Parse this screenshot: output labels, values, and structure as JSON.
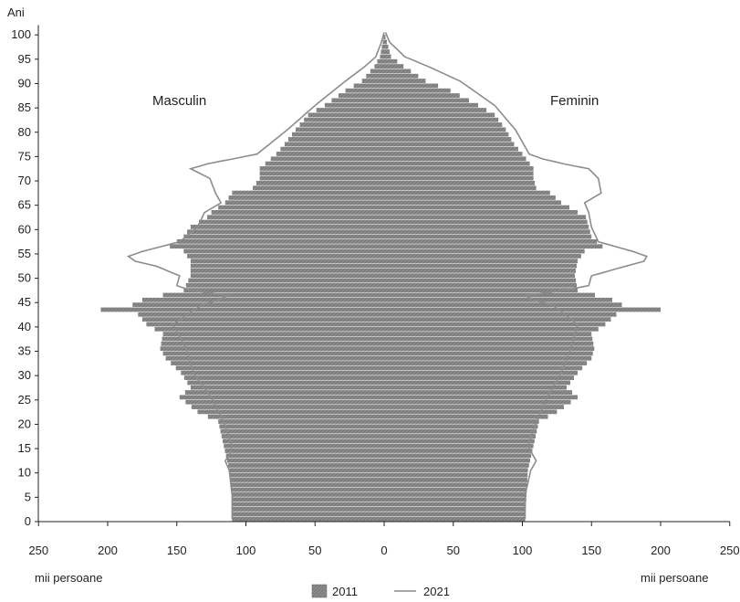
{
  "chart_data": {
    "type": "bar",
    "subtype": "population-pyramid",
    "y_axis_title": "Ani",
    "x_unit_label_left": "mii persoane",
    "x_unit_label_right": "mii persoane",
    "left_label": "Masculin",
    "right_label": "Feminin",
    "y_ticks": [
      0,
      5,
      10,
      15,
      20,
      25,
      30,
      35,
      40,
      45,
      50,
      55,
      60,
      65,
      70,
      75,
      80,
      85,
      90,
      95,
      100
    ],
    "x_ticks_left": [
      250,
      200,
      150,
      100,
      50,
      0
    ],
    "x_ticks_right": [
      50,
      100,
      150,
      200,
      250
    ],
    "xlim": [
      -250,
      250
    ],
    "ylim": [
      0,
      102
    ],
    "colors": {
      "bars_2011": "#8a8a8a",
      "line_2021": "#8c8c8c",
      "axis": "#222222"
    },
    "legend": {
      "placement": "bottom-center",
      "items": [
        {
          "label": "2011",
          "kind": "bar"
        },
        {
          "label": "2021",
          "kind": "line"
        }
      ]
    },
    "series": [
      {
        "name": "2011",
        "kind": "bars",
        "male_ages": [
          0,
          5,
          10,
          15,
          20,
          22,
          25,
          27,
          30,
          33,
          35,
          38,
          40,
          42,
          43,
          44,
          45,
          47,
          50,
          53,
          55,
          56,
          58,
          60,
          62,
          63,
          65,
          67,
          68,
          70,
          72,
          75,
          77,
          80,
          83,
          85,
          88,
          90,
          93,
          95,
          98,
          100
        ],
        "male_values": [
          110,
          110,
          112,
          116,
          120,
          135,
          148,
          140,
          147,
          158,
          162,
          160,
          172,
          178,
          205,
          182,
          175,
          145,
          140,
          140,
          145,
          155,
          145,
          140,
          128,
          125,
          115,
          110,
          95,
          90,
          90,
          78,
          72,
          64,
          55,
          43,
          28,
          16,
          7,
          3,
          1,
          0
        ],
        "female_ages": [
          0,
          5,
          10,
          15,
          20,
          22,
          25,
          27,
          30,
          33,
          35,
          38,
          40,
          42,
          43,
          44,
          45,
          47,
          50,
          53,
          55,
          56,
          58,
          60,
          62,
          63,
          65,
          67,
          68,
          70,
          72,
          75,
          77,
          80,
          83,
          85,
          88,
          90,
          93,
          95,
          98,
          100
        ],
        "female_values": [
          102,
          103,
          104,
          108,
          112,
          125,
          140,
          132,
          140,
          150,
          152,
          150,
          160,
          168,
          200,
          172,
          165,
          140,
          138,
          140,
          145,
          158,
          150,
          148,
          146,
          140,
          128,
          120,
          110,
          108,
          108,
          100,
          94,
          88,
          80,
          68,
          48,
          30,
          14,
          5,
          2,
          0
        ]
      },
      {
        "name": "2021",
        "kind": "line",
        "male_ages": [
          0,
          5,
          10,
          12,
          13,
          15,
          20,
          25,
          30,
          35,
          40,
          44,
          45,
          46,
          47,
          48,
          50,
          52,
          53,
          54,
          55,
          57,
          60,
          63,
          65,
          67,
          70,
          72,
          73,
          74,
          75,
          80,
          85,
          90,
          93,
          95,
          98,
          100
        ],
        "male_values": [
          110,
          110,
          112,
          115,
          112,
          110,
          116,
          125,
          138,
          143,
          153,
          132,
          120,
          112,
          140,
          150,
          148,
          165,
          180,
          185,
          175,
          148,
          135,
          130,
          118,
          122,
          126,
          140,
          128,
          110,
          92,
          70,
          50,
          28,
          14,
          6,
          2,
          0
        ],
        "female_ages": [
          0,
          5,
          10,
          12,
          13,
          15,
          20,
          25,
          30,
          35,
          40,
          44,
          45,
          46,
          47,
          48,
          50,
          52,
          53,
          54,
          55,
          57,
          60,
          63,
          65,
          67,
          70,
          72,
          73,
          74,
          75,
          80,
          85,
          90,
          93,
          95,
          98,
          100
        ],
        "female_values": [
          102,
          102,
          106,
          110,
          108,
          104,
          110,
          118,
          128,
          135,
          140,
          122,
          108,
          102,
          130,
          148,
          150,
          175,
          188,
          190,
          180,
          155,
          150,
          148,
          145,
          157,
          155,
          148,
          130,
          115,
          105,
          95,
          80,
          55,
          32,
          15,
          4,
          1
        ]
      }
    ]
  }
}
